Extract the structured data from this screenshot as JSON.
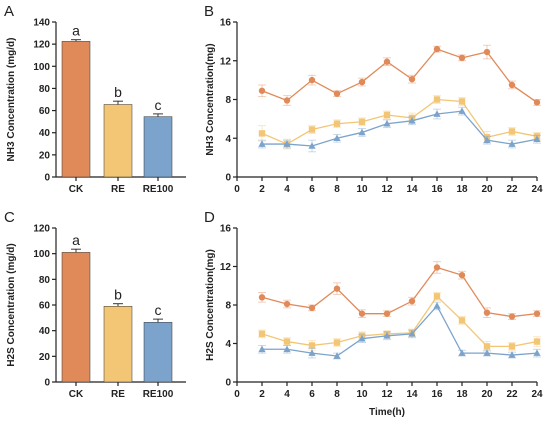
{
  "colors": {
    "CK": "#e08a5a",
    "RE": "#f3c676",
    "RE100": "#7ba3cc",
    "axis": "#222222"
  },
  "chart_data": [
    {
      "panel": "A",
      "type": "bar",
      "ylabel": "NH3 Concentration (mg/d)",
      "categories": [
        "CK",
        "RE",
        "RE100"
      ],
      "values": [
        122.5,
        65.5,
        54.5
      ],
      "errors": [
        1.5,
        3,
        2.5
      ],
      "letters": [
        "a",
        "b",
        "c"
      ],
      "ylim": [
        0,
        140
      ],
      "yticks": [
        0,
        20,
        40,
        60,
        80,
        100,
        120,
        140
      ]
    },
    {
      "panel": "B",
      "type": "line",
      "ylabel": "NH3 Concentration(mg)",
      "xlabel": "",
      "x": [
        2,
        4,
        6,
        8,
        10,
        12,
        14,
        16,
        18,
        20,
        22,
        24
      ],
      "xlim": [
        0,
        24
      ],
      "ylim": [
        0,
        16
      ],
      "yticks": [
        0,
        4,
        8,
        12,
        16
      ],
      "series": [
        {
          "key": "CK",
          "marker": "circle",
          "values": [
            8.9,
            7.9,
            10.0,
            8.6,
            9.8,
            11.9,
            10.1,
            13.2,
            12.3,
            12.9,
            9.5,
            7.7
          ],
          "errors": [
            0.6,
            0.5,
            0.5,
            0.3,
            0.4,
            0.4,
            0.4,
            0.3,
            0.3,
            0.7,
            0.4,
            0.3
          ]
        },
        {
          "key": "RE",
          "marker": "square",
          "values": [
            4.5,
            3.4,
            4.9,
            5.5,
            5.7,
            6.4,
            6.1,
            8.0,
            7.8,
            4.1,
            4.7,
            4.2
          ],
          "errors": [
            0.8,
            0.5,
            0.4,
            0.4,
            0.4,
            0.4,
            0.5,
            0.4,
            0.4,
            0.6,
            0.4,
            0.4
          ]
        },
        {
          "key": "RE100",
          "marker": "triangle",
          "values": [
            3.4,
            3.4,
            3.2,
            4.0,
            4.6,
            5.5,
            5.8,
            6.5,
            6.8,
            3.8,
            3.4,
            3.9
          ],
          "errors": [
            0.4,
            0.4,
            0.6,
            0.4,
            0.4,
            0.4,
            0.4,
            0.5,
            0.4,
            0.4,
            0.4,
            0.4
          ]
        }
      ]
    },
    {
      "panel": "C",
      "type": "bar",
      "ylabel": "H2S Concentration (mg/d)",
      "categories": [
        "CK",
        "RE",
        "RE100"
      ],
      "values": [
        101,
        59,
        46.5
      ],
      "errors": [
        2.5,
        2,
        2.5
      ],
      "letters": [
        "a",
        "b",
        "c"
      ],
      "ylim": [
        0,
        120
      ],
      "yticks": [
        0,
        20,
        40,
        60,
        80,
        100,
        120
      ]
    },
    {
      "panel": "D",
      "type": "line",
      "ylabel": "H2S Concentration(mg)",
      "xlabel": "Time(h)",
      "x": [
        2,
        4,
        6,
        8,
        10,
        12,
        14,
        16,
        18,
        20,
        22,
        24
      ],
      "xlim": [
        0,
        24
      ],
      "ylim": [
        0,
        16
      ],
      "yticks": [
        0,
        4,
        8,
        12,
        16
      ],
      "series": [
        {
          "key": "CK",
          "marker": "circle",
          "values": [
            8.8,
            8.1,
            7.7,
            9.7,
            7.1,
            7.1,
            8.4,
            11.9,
            11.1,
            7.2,
            6.8,
            7.1
          ],
          "errors": [
            0.5,
            0.4,
            0.3,
            0.6,
            0.4,
            0.3,
            0.4,
            0.6,
            0.4,
            0.5,
            0.3,
            0.3
          ]
        },
        {
          "key": "RE",
          "marker": "square",
          "values": [
            5.0,
            4.2,
            3.8,
            4.1,
            4.8,
            5.0,
            5.1,
            8.9,
            6.4,
            3.7,
            3.7,
            4.2
          ],
          "errors": [
            0.4,
            0.4,
            0.5,
            0.4,
            0.4,
            0.3,
            0.4,
            0.4,
            0.4,
            0.5,
            0.4,
            0.5
          ]
        },
        {
          "key": "RE100",
          "marker": "triangle",
          "values": [
            3.4,
            3.4,
            3.0,
            2.7,
            4.5,
            4.8,
            5.0,
            7.9,
            3.0,
            3.0,
            2.8,
            3.0
          ],
          "errors": [
            0.4,
            0.4,
            0.5,
            0.3,
            0.4,
            0.4,
            0.4,
            0.4,
            0.3,
            0.3,
            0.3,
            0.4
          ]
        }
      ]
    }
  ]
}
